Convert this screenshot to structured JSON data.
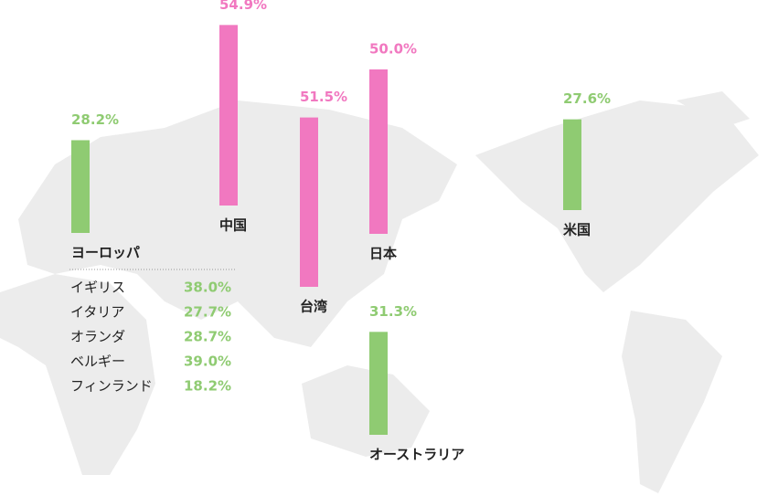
{
  "chart_data": {
    "type": "bar",
    "categories": [
      "ヨーロッパ",
      "中国",
      "台湾",
      "日本",
      "米国",
      "オーストラリア"
    ],
    "values": [
      28.2,
      54.9,
      51.5,
      50.0,
      27.6,
      31.3
    ],
    "value_labels": [
      "28.2%",
      "54.9%",
      "51.5%",
      "50.0%",
      "27.6%",
      "31.3%"
    ],
    "colors": [
      "#8fcb72",
      "#f178c0",
      "#f178c0",
      "#f178c0",
      "#8fcb72",
      "#8fcb72"
    ],
    "breakdown": {
      "categories": [
        "イギリス",
        "イタリア",
        "オランダ",
        "ベルギー",
        "フィンランド"
      ],
      "values": [
        38.0,
        27.7,
        28.7,
        39.0,
        18.2
      ],
      "value_labels": [
        "38.0%",
        "27.7%",
        "28.7%",
        "39.0%",
        "18.2%"
      ]
    }
  }
}
